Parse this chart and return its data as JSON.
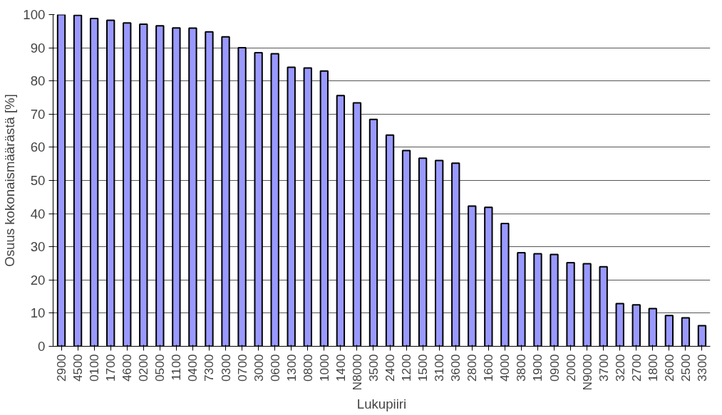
{
  "chart_data": {
    "type": "bar",
    "xlabel": "Lukupiiri",
    "ylabel": "Osuus kokonaismäärästä [%]",
    "categories": [
      "2900",
      "4500",
      "0100",
      "1700",
      "4600",
      "0200",
      "0500",
      "1100",
      "0400",
      "7300",
      "0300",
      "0700",
      "3000",
      "0600",
      "1300",
      "0800",
      "1000",
      "1400",
      "N8000",
      "3500",
      "2400",
      "1200",
      "1500",
      "3100",
      "3600",
      "2800",
      "1600",
      "4000",
      "3800",
      "1900",
      "0900",
      "2000",
      "N9000",
      "3700",
      "3200",
      "2700",
      "1800",
      "2600",
      "2500",
      "3300"
    ],
    "values": [
      100,
      99.8,
      98.8,
      98.3,
      97.5,
      97.1,
      96.6,
      96.0,
      95.9,
      94.8,
      93.3,
      90.0,
      88.5,
      88.2,
      84.1,
      83.9,
      83.0,
      75.6,
      73.4,
      68.4,
      63.7,
      59.0,
      56.7,
      56.0,
      55.2,
      42.3,
      41.9,
      37.0,
      28.2,
      27.9,
      27.7,
      25.2,
      24.9,
      24.0,
      12.9,
      12.5,
      11.4,
      9.3,
      8.6,
      6.2
    ],
    "color": "#9999ff",
    "ylim": [
      0,
      100
    ],
    "yticks": [
      0,
      10,
      20,
      30,
      40,
      50,
      60,
      70,
      80,
      90,
      100
    ],
    "grid": "y"
  }
}
